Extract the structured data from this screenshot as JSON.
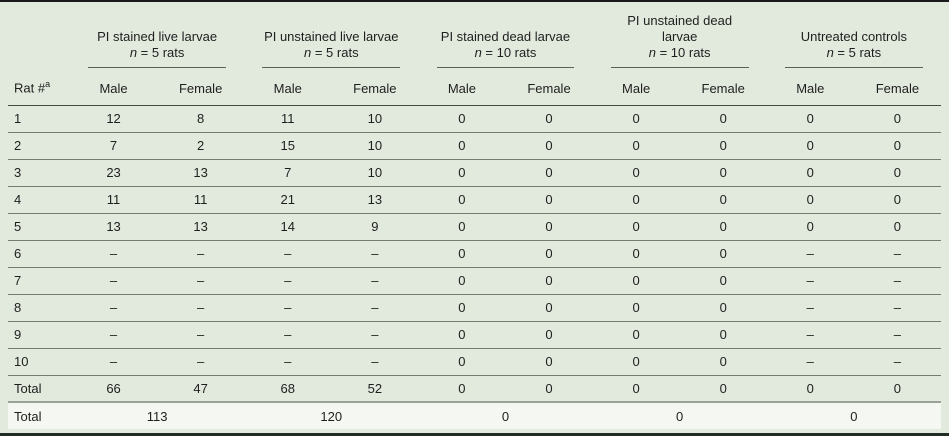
{
  "table": {
    "rat_header": "Rat #",
    "rat_header_sup": "a",
    "sex_headers": [
      "Male",
      "Female"
    ],
    "groups": [
      {
        "title": "PI stained live larvae",
        "n_italic": "n",
        "n_text": " = 5 rats"
      },
      {
        "title": "PI unstained live larvae",
        "n_italic": "n",
        "n_text": " = 5 rats"
      },
      {
        "title": "PI stained dead larvae",
        "n_italic": "n",
        "n_text": " = 10 rats"
      },
      {
        "title": "PI unstained dead larvae",
        "n_italic": "n",
        "n_text": " = 10 rats"
      },
      {
        "title": "Untreated controls",
        "n_italic": "n",
        "n_text": " = 5 rats"
      }
    ],
    "rows": [
      {
        "label": "1",
        "values": [
          "12",
          "8",
          "11",
          "10",
          "0",
          "0",
          "0",
          "0",
          "0",
          "0"
        ]
      },
      {
        "label": "2",
        "values": [
          "7",
          "2",
          "15",
          "10",
          "0",
          "0",
          "0",
          "0",
          "0",
          "0"
        ]
      },
      {
        "label": "3",
        "values": [
          "23",
          "13",
          "7",
          "10",
          "0",
          "0",
          "0",
          "0",
          "0",
          "0"
        ]
      },
      {
        "label": "4",
        "values": [
          "11",
          "11",
          "21",
          "13",
          "0",
          "0",
          "0",
          "0",
          "0",
          "0"
        ]
      },
      {
        "label": "5",
        "values": [
          "13",
          "13",
          "14",
          "9",
          "0",
          "0",
          "0",
          "0",
          "0",
          "0"
        ]
      },
      {
        "label": "6",
        "values": [
          "–",
          "–",
          "–",
          "–",
          "0",
          "0",
          "0",
          "0",
          "–",
          "–"
        ]
      },
      {
        "label": "7",
        "values": [
          "–",
          "–",
          "–",
          "–",
          "0",
          "0",
          "0",
          "0",
          "–",
          "–"
        ]
      },
      {
        "label": "8",
        "values": [
          "–",
          "–",
          "–",
          "–",
          "0",
          "0",
          "0",
          "0",
          "–",
          "–"
        ]
      },
      {
        "label": "9",
        "values": [
          "–",
          "–",
          "–",
          "–",
          "0",
          "0",
          "0",
          "0",
          "–",
          "–"
        ]
      },
      {
        "label": "10",
        "values": [
          "–",
          "–",
          "–",
          "–",
          "0",
          "0",
          "0",
          "0",
          "–",
          "–"
        ]
      },
      {
        "label": "Total",
        "values": [
          "66",
          "47",
          "68",
          "52",
          "0",
          "0",
          "0",
          "0",
          "0",
          "0"
        ]
      }
    ],
    "grand_total": {
      "label": "Total",
      "values": [
        "113",
        "120",
        "0",
        "0",
        "0"
      ]
    }
  },
  "colors": {
    "table_bg": "#e2e9dd",
    "total_row_bg": "#f5f8f2",
    "top_border": "#1a1a1a",
    "bottom_border": "#1f2d24",
    "row_line": "#767c74",
    "header_line": "#454a44",
    "group_rule": "#5a605a",
    "total_line": "#9ba198",
    "text": "#1f1f1f"
  }
}
